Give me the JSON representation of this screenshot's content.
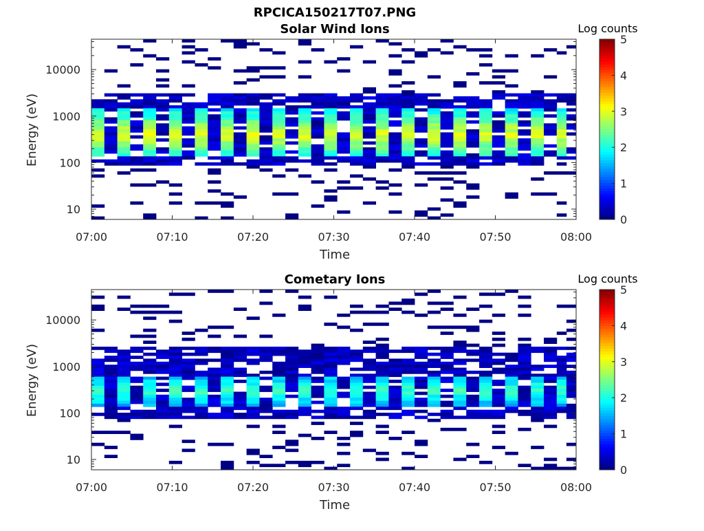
{
  "figure": {
    "title": "RPCICA150217T07.PNG"
  },
  "chart_data": [
    {
      "type": "heatmap",
      "title": "Solar Wind Ions",
      "xlabel": "Time",
      "ylabel": "Energy (eV)",
      "x_ticks": [
        "07:00",
        "07:10",
        "07:20",
        "07:30",
        "07:40",
        "07:50",
        "08:00"
      ],
      "y_ticks": [
        "10",
        "100",
        "1000",
        "10000"
      ],
      "y_scale": "log",
      "ylim": [
        6,
        45000
      ],
      "x_range_minutes": [
        0,
        60
      ],
      "colorbar": {
        "title": "Log counts",
        "ticks": [
          "0",
          "1",
          "2",
          "3",
          "4",
          "5"
        ],
        "range": [
          0,
          5
        ],
        "colormap": "jet"
      },
      "scan_start_minutes": [
        0.0,
        3.2,
        6.4,
        9.6,
        12.8,
        16.0,
        19.2,
        22.4,
        25.6,
        28.8,
        32.0,
        35.2,
        38.4,
        41.6,
        44.8,
        48.0,
        51.2,
        54.4,
        57.6
      ],
      "peak_energy_ev": 400,
      "peak_log_counts": 3.0,
      "core_energy_range_ev": [
        130,
        1500
      ],
      "background_energy_range_ev": [
        90,
        3000
      ]
    },
    {
      "type": "heatmap",
      "title": "Cometary Ions",
      "xlabel": "Time",
      "ylabel": "Energy (eV)",
      "x_ticks": [
        "07:00",
        "07:10",
        "07:20",
        "07:30",
        "07:40",
        "07:50",
        "08:00"
      ],
      "y_ticks": [
        "10",
        "100",
        "1000",
        "10000"
      ],
      "y_scale": "log",
      "ylim": [
        6,
        45000
      ],
      "x_range_minutes": [
        0,
        60
      ],
      "colorbar": {
        "title": "Log counts",
        "ticks": [
          "0",
          "1",
          "2",
          "3",
          "4",
          "5"
        ],
        "range": [
          0,
          5
        ],
        "colormap": "jet"
      },
      "scan_start_minutes": [
        0.0,
        3.2,
        6.4,
        9.6,
        12.8,
        16.0,
        19.2,
        22.4,
        25.6,
        28.8,
        32.0,
        35.2,
        38.4,
        41.6,
        44.8,
        48.0,
        51.2,
        54.4,
        57.6
      ],
      "peak_energy_ev": 300,
      "peak_log_counts": 2.2,
      "core_energy_range_ev": [
        140,
        600
      ],
      "background_energy_range_ev": [
        80,
        2500
      ]
    }
  ]
}
